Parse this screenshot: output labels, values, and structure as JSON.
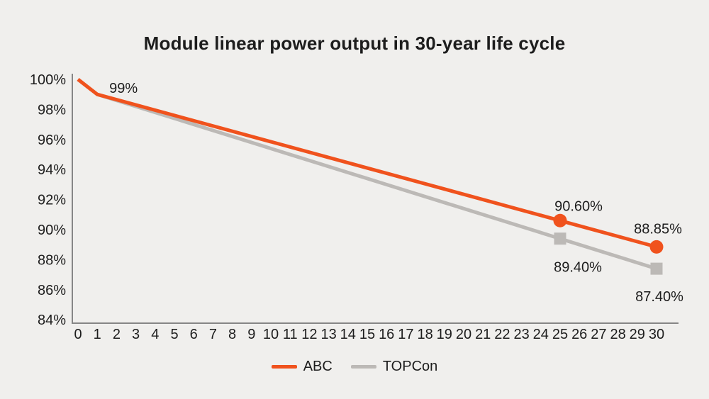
{
  "chart_data": {
    "type": "line",
    "title": "Module linear power output in 30-year life cycle",
    "xlabel": "",
    "ylabel": "",
    "xlim": [
      0,
      30
    ],
    "ylim": [
      84,
      100
    ],
    "grid": false,
    "legend_position": "bottom",
    "x_ticks": [
      0,
      1,
      2,
      3,
      4,
      5,
      6,
      7,
      8,
      9,
      10,
      11,
      12,
      13,
      14,
      15,
      16,
      17,
      18,
      19,
      20,
      21,
      22,
      23,
      24,
      25,
      26,
      27,
      28,
      29,
      30
    ],
    "y_ticks": [
      100,
      98,
      96,
      94,
      92,
      90,
      88,
      86,
      84
    ],
    "y_tick_suffix": "%",
    "colors": {
      "background": "#f0efed",
      "text": "#1d1d1d",
      "axis": "#868686",
      "abc_orange": "#F0521D",
      "topcon_gray": "#BCB9B6"
    },
    "series": [
      {
        "name": "ABC",
        "color": "#F0521D",
        "marker": "circle",
        "x": [
          0,
          1,
          25,
          30
        ],
        "y": [
          100,
          99,
          90.6,
          88.85
        ],
        "marker_points": [
          25,
          30
        ],
        "point_labels": [
          {
            "x": 1,
            "text": "99%",
            "dx": 37,
            "dy": -9
          },
          {
            "x": 25,
            "text": "90.60%",
            "dx": 26,
            "dy": -21
          },
          {
            "x": 30,
            "text": "88.85%",
            "dx": 2,
            "dy": -26
          }
        ]
      },
      {
        "name": "TOPCon",
        "color": "#BCB9B6",
        "marker": "square",
        "x": [
          0,
          1,
          25,
          30
        ],
        "y": [
          100,
          99,
          89.4,
          87.4
        ],
        "marker_points": [
          25,
          30
        ],
        "point_labels": [
          {
            "x": 25,
            "text": "89.40%",
            "dx": 25,
            "dy": 40
          },
          {
            "x": 30,
            "text": "87.40%",
            "dx": 4,
            "dy": 39
          }
        ]
      }
    ]
  }
}
